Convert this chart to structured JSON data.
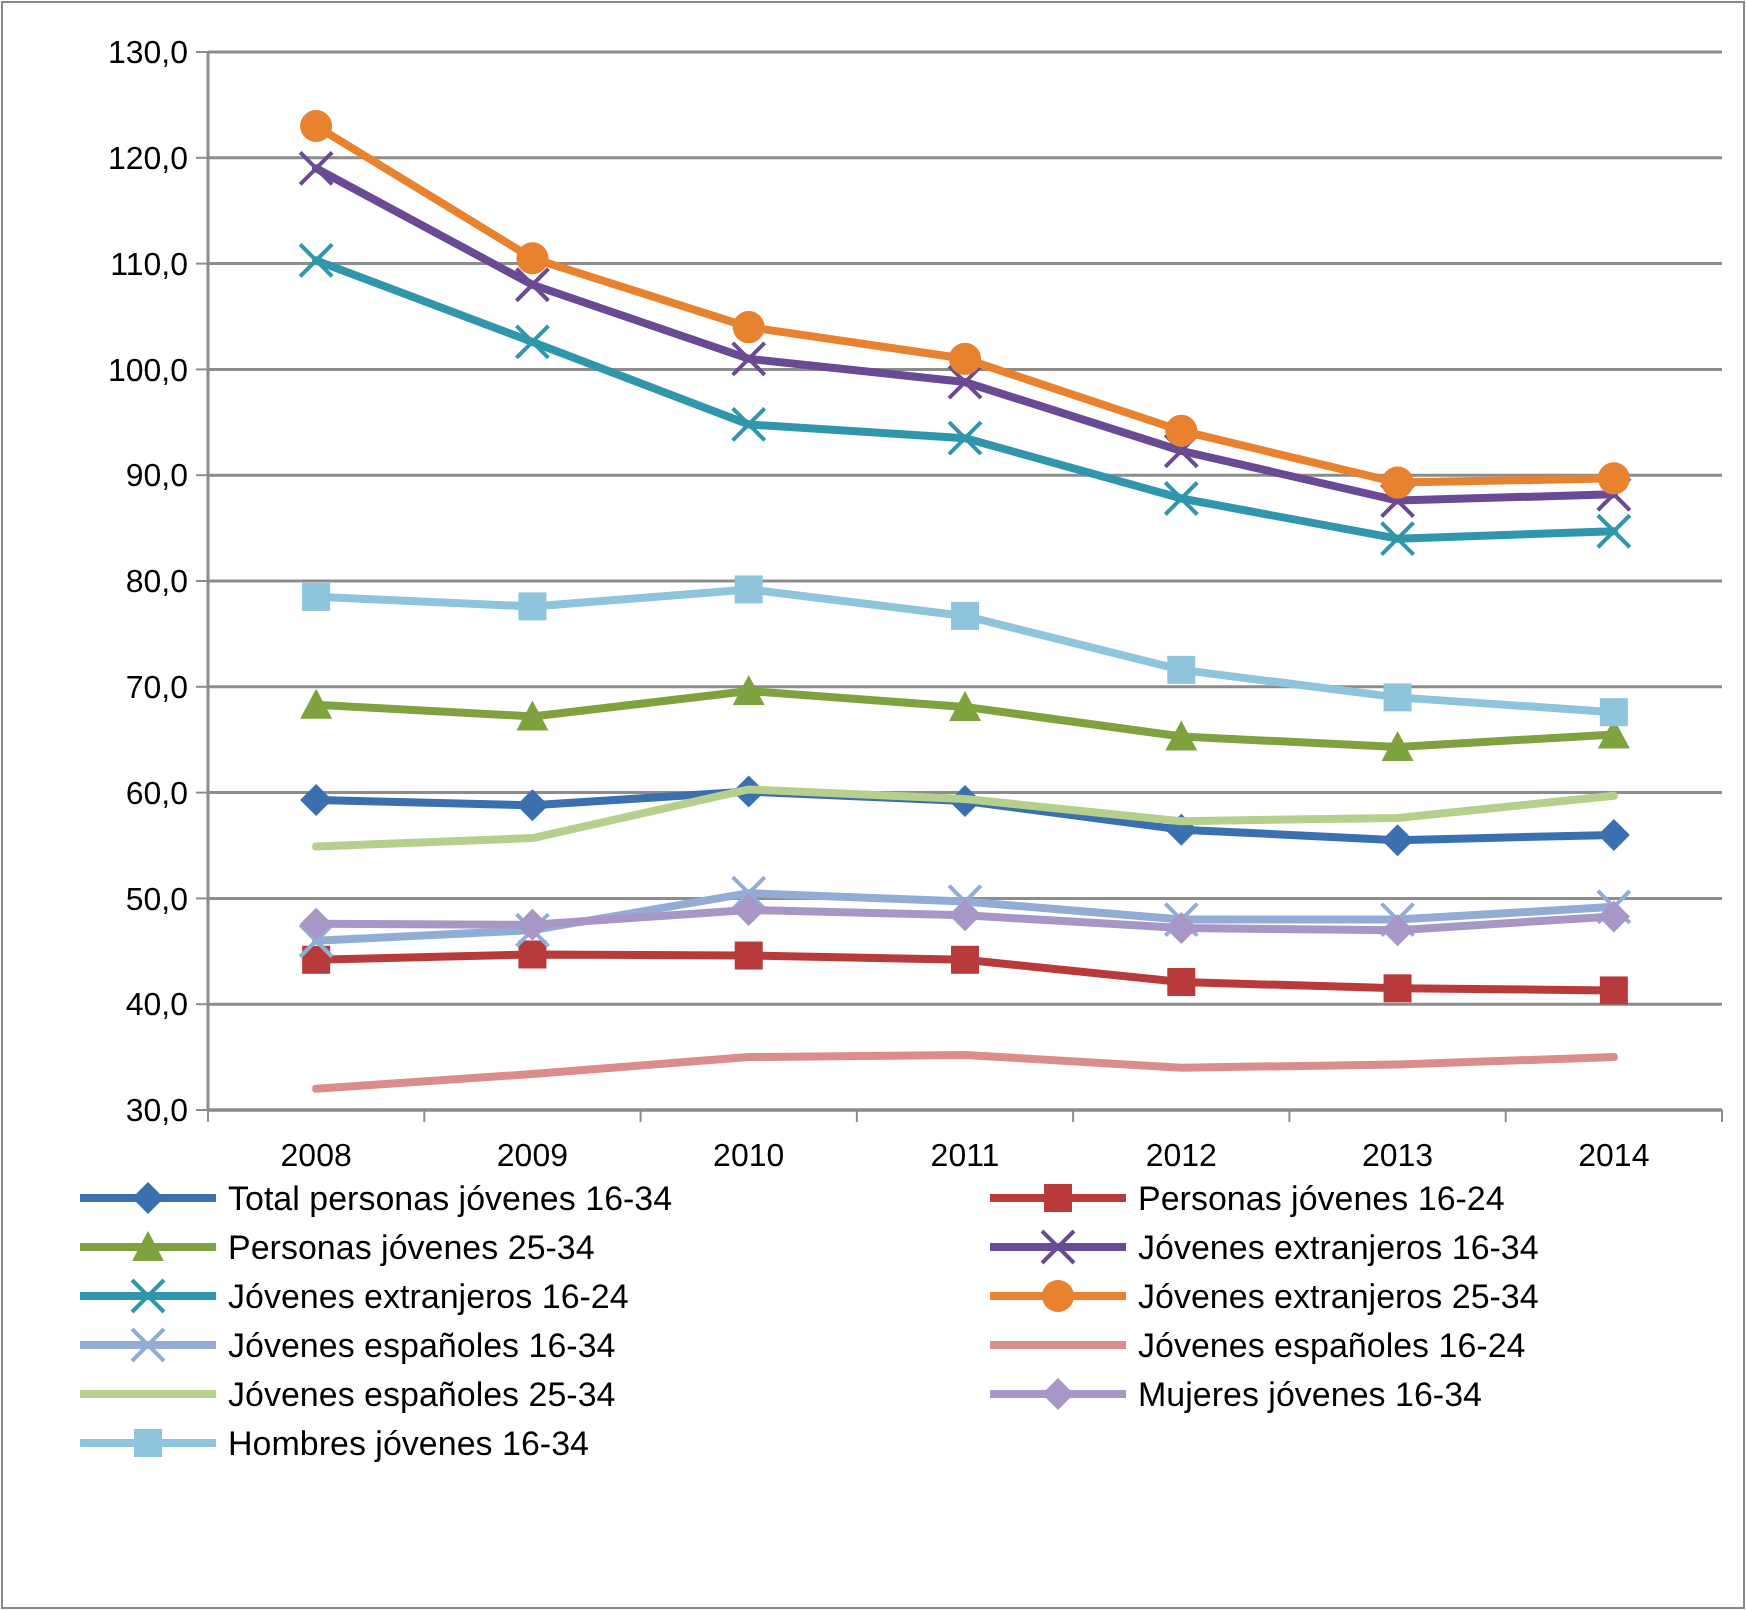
{
  "chart_data": {
    "type": "line",
    "categories": [
      "2008",
      "2009",
      "2010",
      "2011",
      "2012",
      "2013",
      "2014"
    ],
    "ylim": [
      30,
      130
    ],
    "yticks": [
      {
        "value": 30,
        "label": "30,0"
      },
      {
        "value": 40,
        "label": "40,0"
      },
      {
        "value": 50,
        "label": "50,0"
      },
      {
        "value": 60,
        "label": "60,0"
      },
      {
        "value": 70,
        "label": "70,0"
      },
      {
        "value": 80,
        "label": "80,0"
      },
      {
        "value": 90,
        "label": "90,0"
      },
      {
        "value": 100,
        "label": "100,0"
      },
      {
        "value": 110,
        "label": "110,0"
      },
      {
        "value": 120,
        "label": "120,0"
      },
      {
        "value": 130,
        "label": "130,0"
      }
    ],
    "grid": "y",
    "legend": "bottom",
    "series": [
      {
        "name": "Total personas jóvenes 16-34",
        "color": "#3a6fb0",
        "marker": "diamond",
        "values": [
          59.3,
          58.8,
          60.1,
          59.2,
          56.5,
          55.5,
          56.0
        ]
      },
      {
        "name": "Personas jóvenes 16-24",
        "color": "#b83a3a",
        "marker": "square",
        "values": [
          44.2,
          44.7,
          44.6,
          44.2,
          42.1,
          41.5,
          41.3
        ]
      },
      {
        "name": "Personas jóvenes 25-34",
        "color": "#7ea33e",
        "marker": "triangle",
        "values": [
          68.3,
          67.2,
          69.6,
          68.1,
          65.3,
          64.3,
          65.5
        ]
      },
      {
        "name": "Jóvenes extranjeros 16-34",
        "color": "#6a4a94",
        "marker": "cross",
        "values": [
          119.0,
          108.0,
          101.0,
          98.8,
          92.3,
          87.6,
          88.2
        ]
      },
      {
        "name": "Jóvenes extranjeros 16-24",
        "color": "#2f96ab",
        "marker": "cross",
        "values": [
          110.3,
          102.6,
          94.8,
          93.5,
          87.8,
          84.0,
          84.7
        ]
      },
      {
        "name": "Jóvenes extranjeros 25-34",
        "color": "#e8822e",
        "marker": "circle",
        "values": [
          123.0,
          110.5,
          104.0,
          101.0,
          94.2,
          89.3,
          89.7
        ]
      },
      {
        "name": "Jóvenes españoles 16-34",
        "color": "#93acd6",
        "marker": "cross",
        "values": [
          46.0,
          47.0,
          50.5,
          49.7,
          48.0,
          48.0,
          49.2
        ]
      },
      {
        "name": "Jóvenes españoles 16-24",
        "color": "#dd8c8c",
        "marker": "none",
        "values": [
          32.0,
          33.4,
          35.0,
          35.2,
          34.0,
          34.3,
          35.0
        ]
      },
      {
        "name": "Jóvenes españoles 25-34",
        "color": "#b5d08c",
        "marker": "none",
        "values": [
          54.9,
          55.7,
          60.3,
          59.4,
          57.3,
          57.6,
          59.7
        ]
      },
      {
        "name": "Mujeres jóvenes 16-34",
        "color": "#a897c6",
        "marker": "diamond",
        "values": [
          47.6,
          47.5,
          48.9,
          48.4,
          47.2,
          47.0,
          48.3
        ]
      },
      {
        "name": "Hombres jóvenes 16-34",
        "color": "#8ec4dc",
        "marker": "square",
        "values": [
          78.5,
          77.6,
          79.2,
          76.7,
          71.6,
          69.0,
          67.6
        ]
      }
    ]
  }
}
